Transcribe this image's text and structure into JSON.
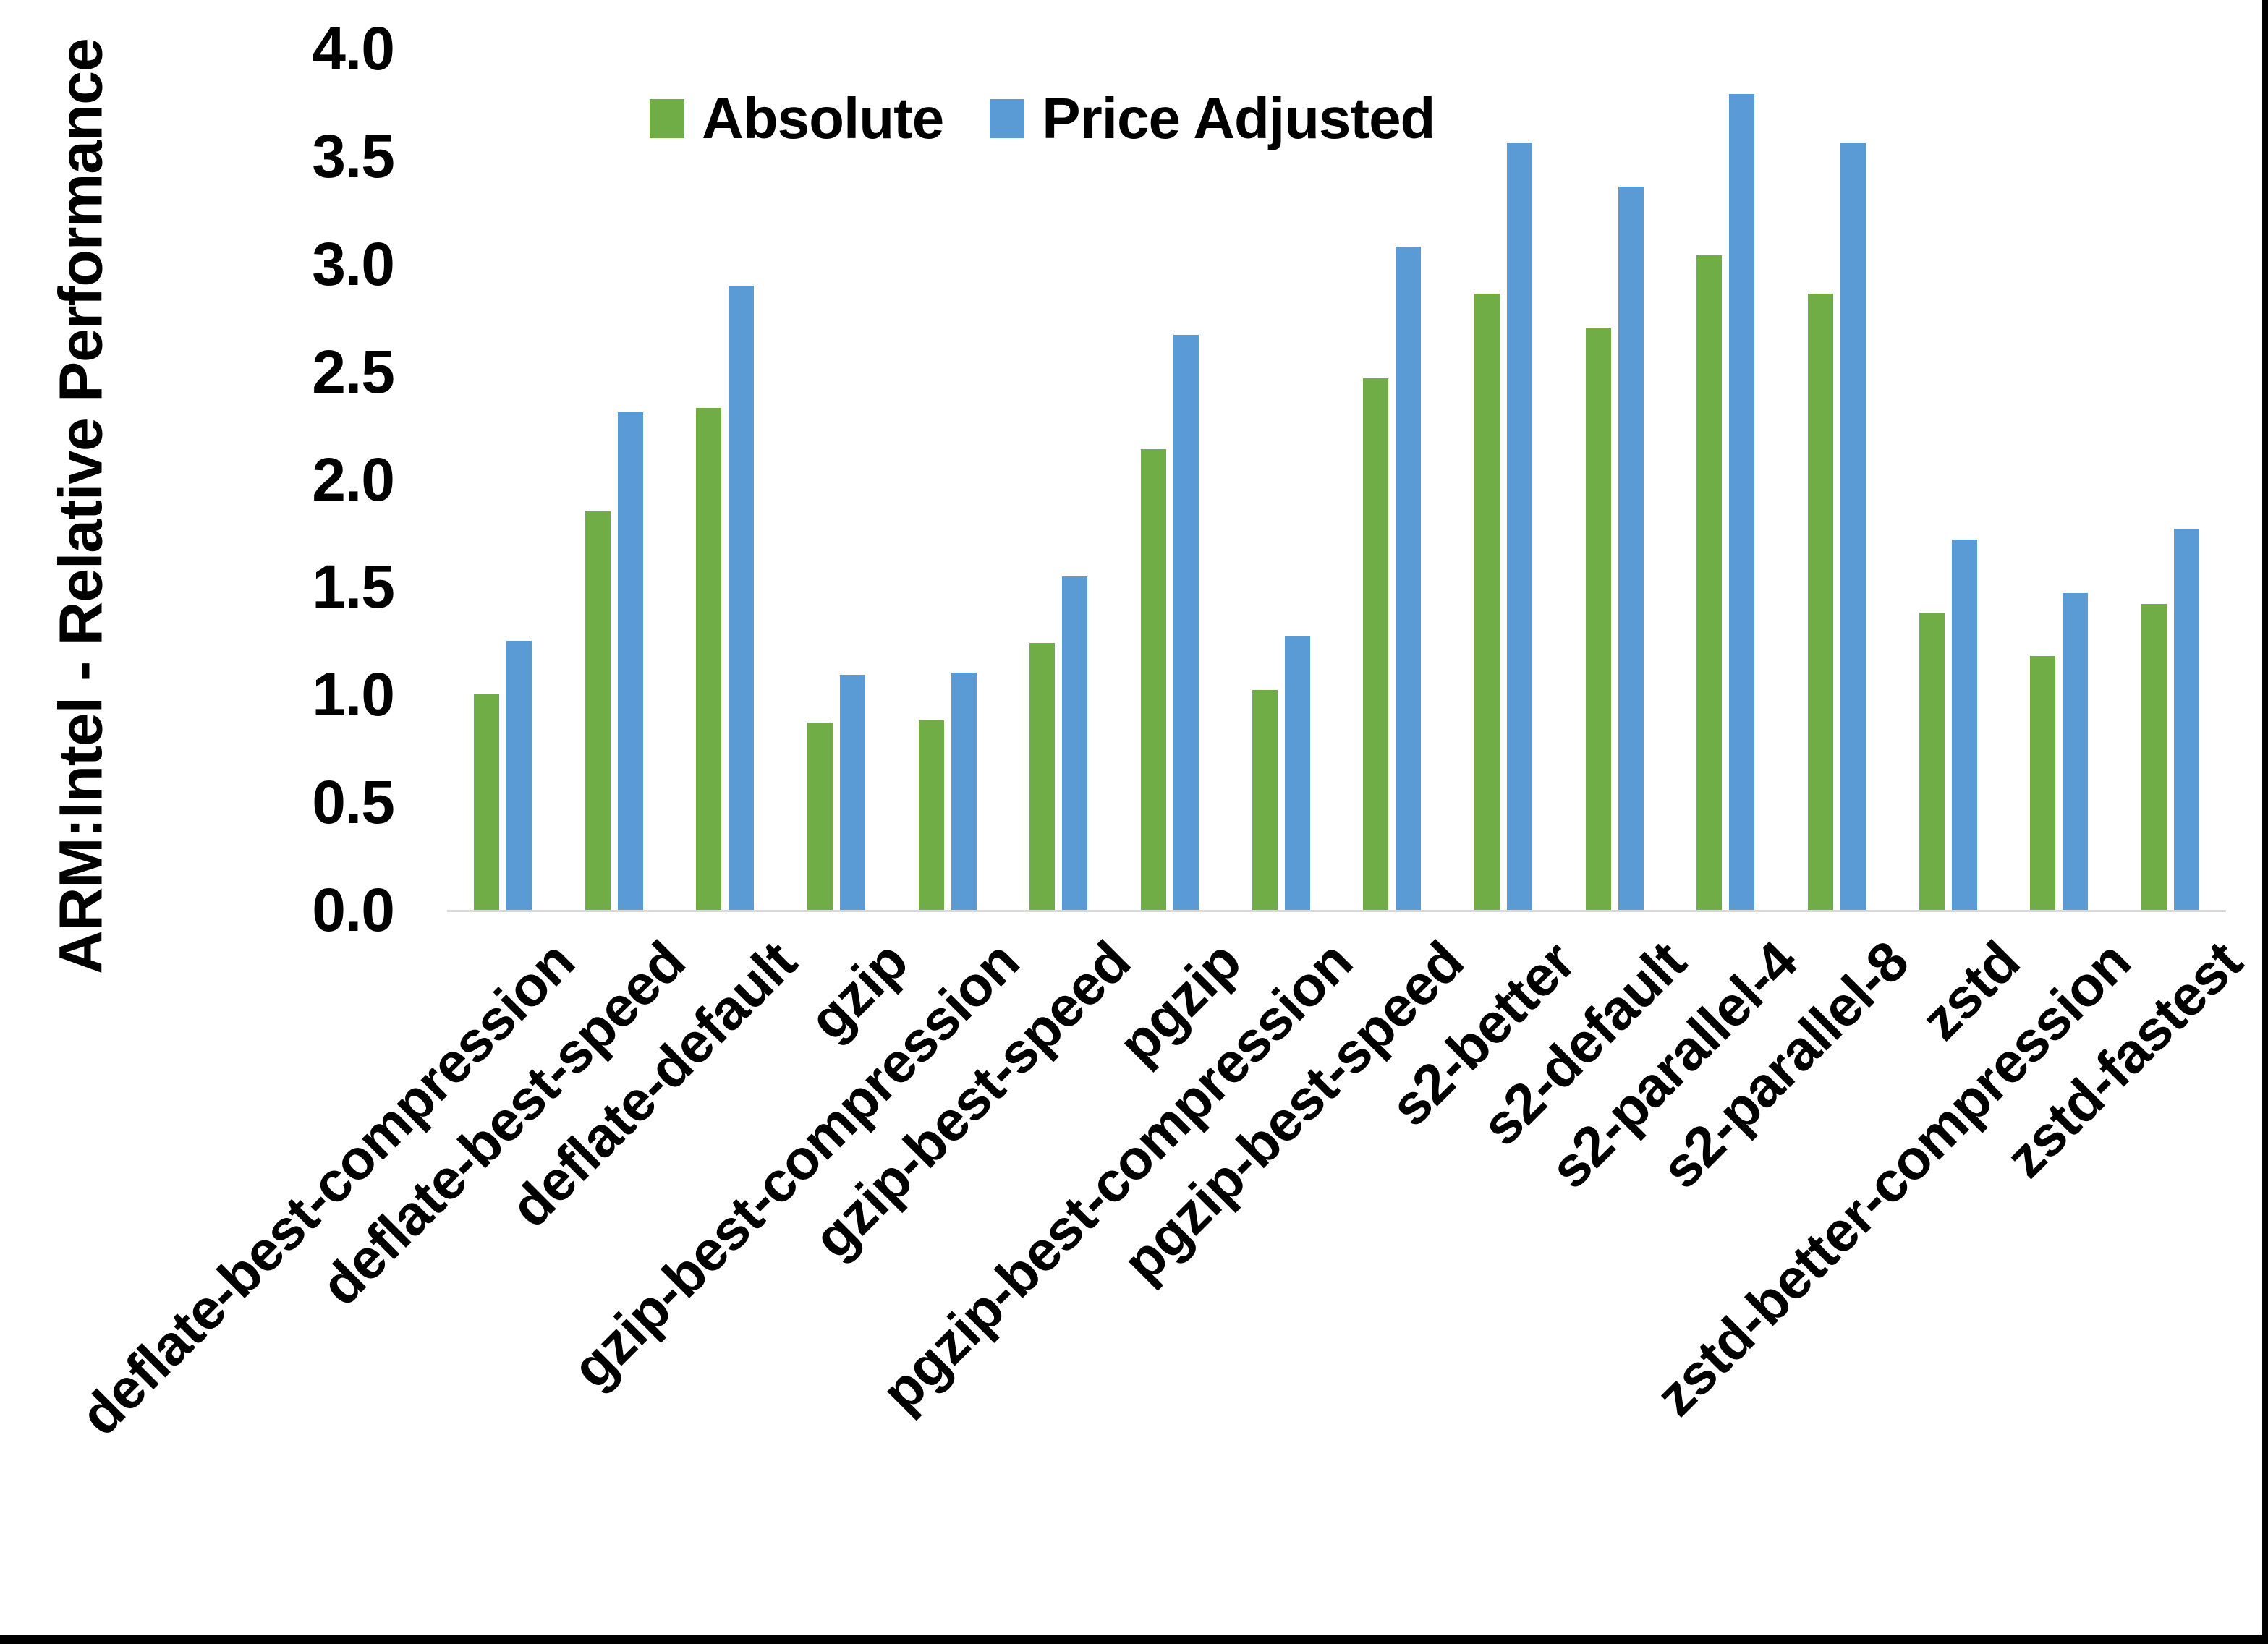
{
  "chart_data": {
    "type": "bar",
    "title": "",
    "ylabel": "ARM:Intel - Relative Performance",
    "xlabel": "",
    "ylim": [
      0.0,
      4.0
    ],
    "ytick_labels": [
      "0.0",
      "0.5",
      "1.0",
      "1.5",
      "2.0",
      "2.5",
      "3.0",
      "3.5",
      "4.0"
    ],
    "grid": false,
    "legend_position": "top-center",
    "categories": [
      "deflate-best-compression",
      "deflate-best-speed",
      "deflate-default",
      "gzip",
      "gzip-best-compression",
      "gzip-best-speed",
      "pgzip",
      "pgzip-best-compression",
      "pgzip-best-speed",
      "s2-better",
      "s2-default",
      "s2-parallel-4",
      "s2-parallel-8",
      "zstd",
      "zstd-better-compression",
      "zstd-fastest"
    ],
    "series": [
      {
        "name": "Absolute",
        "color": "#70AD47",
        "values": [
          1.0,
          1.85,
          2.33,
          0.87,
          0.88,
          1.24,
          2.14,
          1.02,
          2.47,
          2.86,
          2.7,
          3.04,
          2.86,
          1.38,
          1.18,
          1.42
        ]
      },
      {
        "name": "Price Adjusted",
        "color": "#5B9BD5",
        "values": [
          1.25,
          2.31,
          2.9,
          1.09,
          1.1,
          1.55,
          2.67,
          1.27,
          3.08,
          3.56,
          3.36,
          3.79,
          3.56,
          1.72,
          1.47,
          1.77
        ]
      }
    ]
  },
  "colors": {
    "background": "#FFFFFF",
    "axis_line": "#D9D9D9",
    "text": "#000000",
    "frame": "#000000"
  }
}
